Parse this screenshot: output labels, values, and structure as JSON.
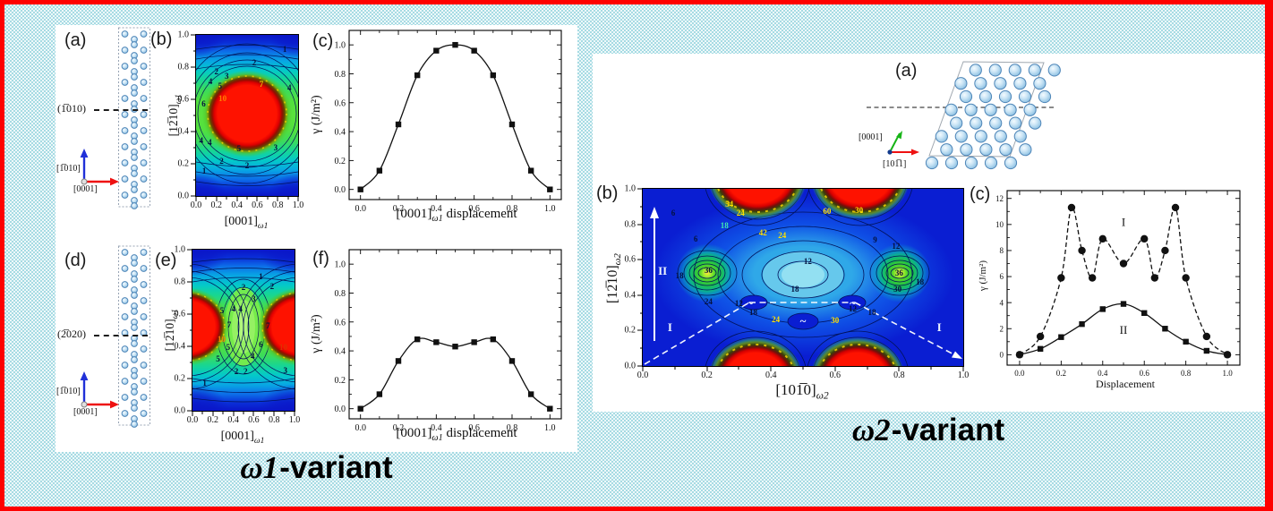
{
  "colors": {
    "border": "#fe0000",
    "background_light": "#eef8fa",
    "background_cyan": "#a6dbe3",
    "panel_background": "#ffffff",
    "contour_red_max": "#fe1200",
    "contour_blue_min": "#0a16c8",
    "atom_fill": "#c9e4f5"
  },
  "left_panel": {
    "title": {
      "omega": "ω1",
      "suffix": "-variant"
    },
    "a": {
      "label": "(a)",
      "plane": "(1̅010)",
      "axis_up": "[1̅010]",
      "axis_right": "[0001]"
    },
    "b": {
      "label": "(b)"
    },
    "c": {
      "label": "(c)"
    },
    "d": {
      "label": "(d)",
      "plane": "(2̅020)",
      "axis_up": "[1̅010]",
      "axis_right": "[0001]"
    },
    "e": {
      "label": "(e)"
    },
    "f": {
      "label": "(f)"
    }
  },
  "right_panel": {
    "title": {
      "omega": "ω2",
      "suffix": "-variant"
    },
    "a": {
      "label": "(a)",
      "axis_up": "[0001]",
      "axis_right": "[101̅1]"
    },
    "b": {
      "label": "(b)"
    },
    "c": {
      "label": "(c)"
    }
  },
  "chart_data": {
    "omega1_b": {
      "type": "contour",
      "xlabel": {
        "pre": "[0001]",
        "sub": "ω1"
      },
      "ylabel": {
        "pre": "[12̅10]",
        "sub": "ω1"
      },
      "xlim": [
        0,
        1
      ],
      "ylim": [
        0,
        1
      ],
      "ticks": [
        "0.0",
        "0.2",
        "0.4",
        "0.6",
        "0.8",
        "1.0"
      ],
      "contour_levels": [
        1,
        2,
        3,
        4,
        5,
        6,
        7,
        10
      ],
      "labels": [
        {
          "t": "1",
          "x": 0.87,
          "y": 0.09
        },
        {
          "t": "2",
          "x": 0.57,
          "y": 0.17
        },
        {
          "t": "2",
          "x": 0.2,
          "y": 0.225
        },
        {
          "t": "3",
          "x": 0.3,
          "y": 0.255
        },
        {
          "t": "4",
          "x": 0.14,
          "y": 0.29
        },
        {
          "t": "5",
          "x": 0.235,
          "y": 0.315
        },
        {
          "t": "7",
          "x": 0.64,
          "y": 0.305,
          "c": "#e8d000"
        },
        {
          "t": "4",
          "x": 0.915,
          "y": 0.33
        },
        {
          "t": "10",
          "x": 0.26,
          "y": 0.395,
          "c": "#ff7d00"
        },
        {
          "t": "6",
          "x": 0.075,
          "y": 0.43
        },
        {
          "t": "4",
          "x": 0.05,
          "y": 0.655
        },
        {
          "t": "4",
          "x": 0.135,
          "y": 0.665
        },
        {
          "t": "5",
          "x": 0.42,
          "y": 0.705
        },
        {
          "t": "3",
          "x": 0.78,
          "y": 0.7
        },
        {
          "t": "2",
          "x": 0.25,
          "y": 0.785
        },
        {
          "t": "2",
          "x": 0.5,
          "y": 0.81
        },
        {
          "t": "1",
          "x": 0.08,
          "y": 0.845
        }
      ]
    },
    "omega1_c": {
      "type": "line",
      "ylabel": "γ (J/m²)",
      "xlabel": {
        "pre": "[0001]",
        "sub": "ω1",
        "post": " displacement"
      },
      "xlim": [
        -0.06,
        1.06
      ],
      "ylim": [
        -0.07,
        1.1
      ],
      "xticks": {
        "major": [
          0,
          0.2,
          0.4,
          0.6,
          0.8,
          1
        ],
        "minor": [
          0.1,
          0.3,
          0.5,
          0.7,
          0.9
        ],
        "labels": [
          "0.0",
          "0.2",
          "0.4",
          "0.6",
          "0.8",
          "1.0"
        ]
      },
      "yticks": {
        "major": [
          0,
          0.2,
          0.4,
          0.6,
          0.8,
          1
        ],
        "minor": [
          0.1,
          0.3,
          0.5,
          0.7,
          0.9
        ],
        "labels": [
          "0.0",
          "0.2",
          "0.4",
          "0.6",
          "0.8",
          "1.0"
        ]
      },
      "series": [
        {
          "name": "gamma",
          "marker": "square",
          "dash": null,
          "x": [
            0,
            0.1,
            0.2,
            0.3,
            0.4,
            0.5,
            0.6,
            0.7,
            0.8,
            0.9,
            1.0
          ],
          "y": [
            0,
            0.13,
            0.45,
            0.79,
            0.96,
            1.0,
            0.96,
            0.79,
            0.45,
            0.13,
            0
          ]
        }
      ],
      "notes": []
    },
    "omega1_e": {
      "type": "contour",
      "xlabel": {
        "pre": "[0001]",
        "sub": "ω1"
      },
      "ylabel": {
        "pre": "[12̅10]",
        "sub": "ω1"
      },
      "xlim": [
        0,
        1
      ],
      "ylim": [
        0,
        1
      ],
      "ticks": [
        "0.0",
        "0.2",
        "0.4",
        "0.6",
        "0.8",
        "1.0"
      ],
      "contour_levels": [
        1,
        2,
        3,
        4,
        5,
        6,
        7,
        10
      ],
      "labels": [
        {
          "t": "1",
          "x": 0.67,
          "y": 0.165
        },
        {
          "t": "2",
          "x": 0.5,
          "y": 0.235
        },
        {
          "t": "2",
          "x": 0.78,
          "y": 0.225
        },
        {
          "t": "3",
          "x": 0.6,
          "y": 0.305
        },
        {
          "t": "5",
          "x": 0.29,
          "y": 0.375
        },
        {
          "t": "4",
          "x": 0.4,
          "y": 0.365
        },
        {
          "t": "4",
          "x": 0.47,
          "y": 0.365
        },
        {
          "t": "7",
          "x": 0.36,
          "y": 0.465
        },
        {
          "t": "7",
          "x": 0.74,
          "y": 0.47
        },
        {
          "t": "10",
          "x": 0.285,
          "y": 0.555,
          "c": "#ff7d00"
        },
        {
          "t": "5",
          "x": 0.35,
          "y": 0.605
        },
        {
          "t": "6",
          "x": 0.67,
          "y": 0.59
        },
        {
          "t": "10",
          "x": 0.89,
          "y": 0.605,
          "c": "#e03000"
        },
        {
          "t": "4",
          "x": 0.59,
          "y": 0.66
        },
        {
          "t": "5",
          "x": 0.25,
          "y": 0.675
        },
        {
          "t": "2",
          "x": 0.43,
          "y": 0.755
        },
        {
          "t": "2",
          "x": 0.52,
          "y": 0.755
        },
        {
          "t": "3",
          "x": 0.91,
          "y": 0.75
        },
        {
          "t": "1",
          "x": 0.12,
          "y": 0.825
        }
      ]
    },
    "omega1_f": {
      "type": "line",
      "ylabel": "γ (J/m²)",
      "xlabel": {
        "pre": "[0001]",
        "sub": "ω1",
        "post": " displacement"
      },
      "xlim": [
        -0.06,
        1.06
      ],
      "ylim": [
        -0.07,
        1.1
      ],
      "xticks": {
        "major": [
          0,
          0.2,
          0.4,
          0.6,
          0.8,
          1
        ],
        "minor": [
          0.1,
          0.3,
          0.5,
          0.7,
          0.9
        ],
        "labels": [
          "0.0",
          "0.2",
          "0.4",
          "0.6",
          "0.8",
          "1.0"
        ]
      },
      "yticks": {
        "major": [
          0,
          0.2,
          0.4,
          0.6,
          0.8,
          1
        ],
        "minor": [
          0.1,
          0.3,
          0.5,
          0.7,
          0.9
        ],
        "labels": [
          "0.0",
          "0.2",
          "0.4",
          "0.6",
          "0.8",
          "1.0"
        ]
      },
      "series": [
        {
          "name": "gamma",
          "marker": "square",
          "dash": null,
          "x": [
            0,
            0.1,
            0.2,
            0.3,
            0.4,
            0.5,
            0.6,
            0.7,
            0.8,
            0.9,
            1.0
          ],
          "y": [
            0,
            0.1,
            0.33,
            0.48,
            0.46,
            0.43,
            0.46,
            0.48,
            0.33,
            0.1,
            0
          ]
        }
      ],
      "notes": []
    },
    "omega2_b": {
      "type": "contour",
      "xlabel": {
        "pre": "[101̅0]",
        "sub": "ω2"
      },
      "ylabel": {
        "pre": "[12̅10]",
        "sub": "ω2"
      },
      "xlim": [
        0,
        1
      ],
      "ylim": [
        0,
        1
      ],
      "ticks": [
        "0.0",
        "0.2",
        "0.4",
        "0.6",
        "0.8",
        "1.0"
      ],
      "contour_levels": [
        6,
        9,
        12,
        18,
        24,
        30,
        36,
        42,
        54,
        60
      ],
      "labels": [
        {
          "t": "54",
          "x": 0.27,
          "y": 0.085,
          "c": "#ffe000"
        },
        {
          "t": "6",
          "x": 0.095,
          "y": 0.135
        },
        {
          "t": "24",
          "x": 0.305,
          "y": 0.135,
          "c": "#ffe000"
        },
        {
          "t": "18",
          "x": 0.255,
          "y": 0.205,
          "c": "#40e8b0"
        },
        {
          "t": "42",
          "x": 0.375,
          "y": 0.245,
          "c": "#ffe000"
        },
        {
          "t": "24",
          "x": 0.435,
          "y": 0.265,
          "c": "#ffe000"
        },
        {
          "t": "60",
          "x": 0.575,
          "y": 0.125,
          "c": "#ffe000"
        },
        {
          "t": "30",
          "x": 0.675,
          "y": 0.12,
          "c": "#ffe000"
        },
        {
          "t": "9",
          "x": 0.725,
          "y": 0.29
        },
        {
          "t": "12",
          "x": 0.79,
          "y": 0.325
        },
        {
          "t": "6",
          "x": 0.165,
          "y": 0.285
        },
        {
          "t": "12",
          "x": 0.515,
          "y": 0.41
        },
        {
          "t": "18",
          "x": 0.475,
          "y": 0.565
        },
        {
          "t": "18",
          "x": 0.115,
          "y": 0.49
        },
        {
          "t": "36",
          "x": 0.205,
          "y": 0.46
        },
        {
          "t": "24",
          "x": 0.205,
          "y": 0.635
        },
        {
          "t": "12",
          "x": 0.3,
          "y": 0.645
        },
        {
          "t": "36",
          "x": 0.8,
          "y": 0.475
        },
        {
          "t": "30",
          "x": 0.795,
          "y": 0.565
        },
        {
          "t": "18",
          "x": 0.865,
          "y": 0.525
        },
        {
          "t": "18",
          "x": 0.345,
          "y": 0.695
        },
        {
          "t": "24",
          "x": 0.415,
          "y": 0.735,
          "c": "#ffe000"
        },
        {
          "t": "12",
          "x": 0.655,
          "y": 0.675
        },
        {
          "t": "18",
          "x": 0.715,
          "y": 0.695
        },
        {
          "t": "30",
          "x": 0.6,
          "y": 0.74,
          "c": "#ffe000"
        }
      ],
      "annotations": [
        {
          "t": "II",
          "x": 0.062,
          "y": 0.465
        },
        {
          "t": "I",
          "x": 0.085,
          "y": 0.785
        },
        {
          "t": "I",
          "x": 0.925,
          "y": 0.785
        },
        {
          "t": "~",
          "x": 0.335,
          "y": 0.645
        },
        {
          "t": "~",
          "x": 0.5,
          "y": 0.745
        },
        {
          "t": "~",
          "x": 0.655,
          "y": 0.645
        }
      ]
    },
    "omega2_c": {
      "type": "line",
      "ylabel": "γ (J/m²)",
      "xlabel": {
        "pre": "Displacement",
        "sub": "",
        "post": ""
      },
      "xlim": [
        -0.06,
        1.06
      ],
      "ylim": [
        -0.8,
        12.6
      ],
      "xticks": {
        "major": [
          0,
          0.2,
          0.4,
          0.6,
          0.8,
          1
        ],
        "minor": [
          0.1,
          0.3,
          0.5,
          0.7,
          0.9
        ],
        "labels": [
          "0.0",
          "0.2",
          "0.4",
          "0.6",
          "0.8",
          "1.0"
        ]
      },
      "yticks": {
        "major": [
          0,
          2,
          4,
          6,
          8,
          10,
          12
        ],
        "minor": [
          1,
          3,
          5,
          7,
          9,
          11
        ],
        "labels": [
          "0",
          "2",
          "4",
          "6",
          "8",
          "10",
          "12"
        ]
      },
      "series": [
        {
          "name": "I",
          "marker": "circle",
          "dash": "5 3",
          "x": [
            0,
            0.1,
            0.2,
            0.25,
            0.3,
            0.35,
            0.4,
            0.5,
            0.6,
            0.65,
            0.7,
            0.75,
            0.8,
            0.9,
            1.0
          ],
          "y": [
            0,
            1.4,
            5.9,
            11.3,
            8.0,
            5.9,
            8.9,
            7.0,
            8.9,
            5.9,
            8.0,
            11.3,
            5.9,
            1.4,
            0
          ]
        },
        {
          "name": "II",
          "marker": "square",
          "dash": null,
          "x": [
            0,
            0.1,
            0.2,
            0.3,
            0.4,
            0.5,
            0.6,
            0.7,
            0.8,
            0.9,
            1.0
          ],
          "y": [
            0,
            0.45,
            1.35,
            2.35,
            3.5,
            3.9,
            3.2,
            2.0,
            1.0,
            0.3,
            0
          ]
        }
      ],
      "notes": [
        {
          "t": "I",
          "x": 0.5,
          "y": 9.9
        },
        {
          "t": "II",
          "x": 0.5,
          "y": 1.6
        }
      ]
    }
  }
}
